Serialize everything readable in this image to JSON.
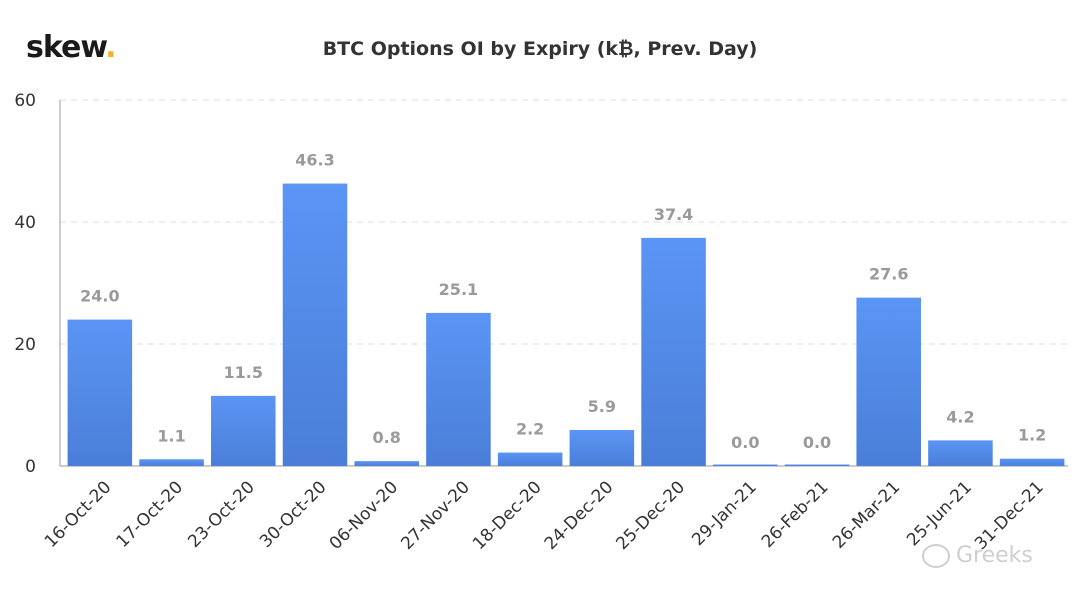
{
  "logo": {
    "text": "skew",
    "dot": "."
  },
  "watermark": {
    "text": "Greeks",
    "icon": "wechat-icon"
  },
  "chart_data": {
    "type": "bar",
    "title": "BTC Options OI by Expiry (k₿, Prev. Day)",
    "xlabel": "",
    "ylabel": "",
    "categories": [
      "16-Oct-20",
      "17-Oct-20",
      "23-Oct-20",
      "30-Oct-20",
      "06-Nov-20",
      "27-Nov-20",
      "18-Dec-20",
      "24-Dec-20",
      "25-Dec-20",
      "29-Jan-21",
      "26-Feb-21",
      "26-Mar-21",
      "25-Jun-21",
      "31-Dec-21"
    ],
    "values": [
      24.0,
      1.1,
      11.5,
      46.3,
      0.8,
      25.1,
      2.2,
      5.9,
      37.4,
      0.0,
      0.0,
      27.6,
      4.2,
      1.2
    ],
    "data_labels": [
      "24.0",
      "1.1",
      "11.5",
      "46.3",
      "0.8",
      "25.1",
      "2.2",
      "5.9",
      "37.4",
      "0.0",
      "0.0",
      "27.6",
      "4.2",
      "1.2"
    ],
    "ylim": [
      0,
      60
    ],
    "yticks": [
      "0",
      "20",
      "40",
      "60"
    ],
    "ytick_values": [
      0,
      20,
      40,
      60
    ],
    "grid": true,
    "colors": {
      "bar_top": "#5b95f5",
      "bar_bottom": "#4a7ed8",
      "grid": "#dddddd",
      "axis": "#999999"
    }
  }
}
